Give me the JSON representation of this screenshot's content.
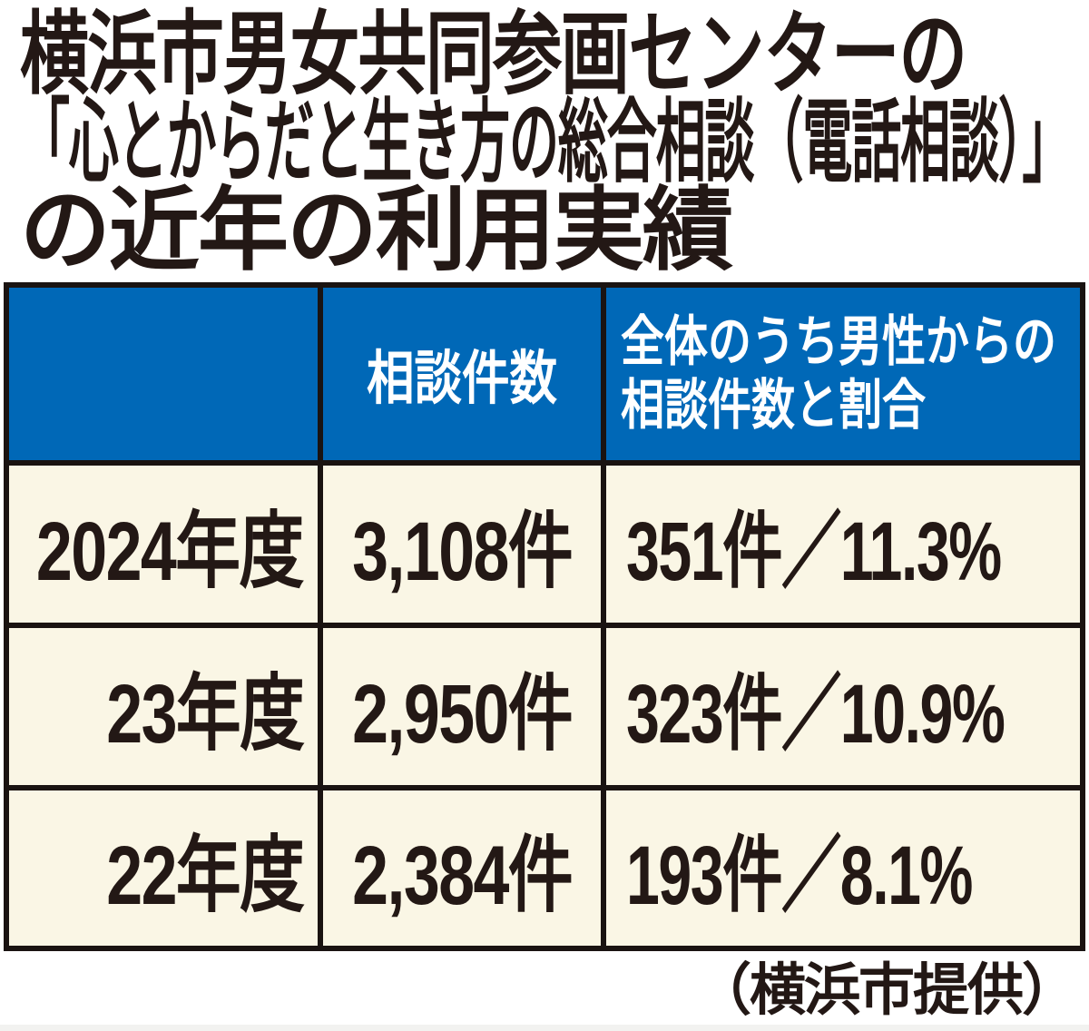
{
  "title": {
    "line1": "横浜市男女共同参画センターの",
    "line2": "「心とからだと生き方の総合相談（電話相談）」",
    "line3": "の近年の利用実績"
  },
  "table": {
    "header": {
      "col1": "",
      "col2": "相談件数",
      "col3_line1": "全体のうち男性からの",
      "col3_line2": "相談件数と割合"
    },
    "rows": [
      {
        "year": "2024年度",
        "count": "3,108件",
        "male": "351件／11.3%"
      },
      {
        "year": "23年度",
        "count": "2,950件",
        "male": "323件／10.9%"
      },
      {
        "year": "22年度",
        "count": "2,384件",
        "male": "193件／8.1%"
      }
    ]
  },
  "credit": "（横浜市提供）",
  "colors": {
    "header_blue": "#0068B7",
    "row_cream": "#FAF6E5",
    "text_ink": "#231815",
    "border_black": "#1A1311"
  },
  "chart_data": {
    "type": "table",
    "title": "横浜市男女共同参画センターの「心とからだと生き方の総合相談（電話相談）」の近年の利用実績",
    "columns": [
      "",
      "相談件数",
      "全体のうち男性からの相談件数と割合"
    ],
    "rows": [
      [
        "2024年度",
        "3,108件",
        "351件／11.3%"
      ],
      [
        "23年度",
        "2,950件",
        "323件／10.9%"
      ],
      [
        "22年度",
        "2,384件",
        "193件／8.1%"
      ]
    ],
    "series": [
      {
        "name": "相談件数",
        "values": [
          3108,
          2950,
          2384
        ]
      },
      {
        "name": "男性からの相談件数",
        "values": [
          351,
          323,
          193
        ]
      },
      {
        "name": "男性割合(%)",
        "values": [
          11.3,
          10.9,
          8.1
        ]
      }
    ],
    "categories": [
      "2024年度",
      "23年度",
      "22年度"
    ],
    "source": "（横浜市提供）",
    "legend_position": "none",
    "grid": true
  }
}
